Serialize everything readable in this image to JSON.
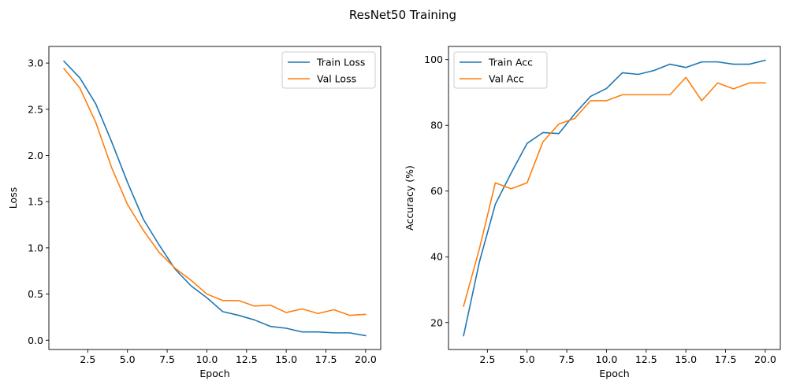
{
  "figure": {
    "suptitle": "ResNet50 Training"
  },
  "chart_data": [
    {
      "type": "line",
      "title": "",
      "xlabel": "Epoch",
      "ylabel": "Loss",
      "xlim": [
        0.05,
        20.95
      ],
      "ylim": [
        -0.1,
        3.18
      ],
      "xticks": [
        2.5,
        5.0,
        7.5,
        10.0,
        12.5,
        15.0,
        17.5,
        20.0
      ],
      "xtick_labels": [
        "2.5",
        "5.0",
        "7.5",
        "10.0",
        "12.5",
        "15.0",
        "17.5",
        "20.0"
      ],
      "yticks": [
        0.0,
        0.5,
        1.0,
        1.5,
        2.0,
        2.5,
        3.0
      ],
      "ytick_labels": [
        "0.0",
        "0.5",
        "1.0",
        "1.5",
        "2.0",
        "2.5",
        "3.0"
      ],
      "grid": false,
      "legend_position": "top-right",
      "x": [
        1,
        2,
        3,
        4,
        5,
        6,
        7,
        8,
        9,
        10,
        11,
        12,
        13,
        14,
        15,
        16,
        17,
        18,
        19,
        20
      ],
      "series": [
        {
          "name": "Train Loss",
          "color": "#1f77b4",
          "values": [
            3.02,
            2.84,
            2.56,
            2.15,
            1.71,
            1.31,
            1.03,
            0.77,
            0.59,
            0.46,
            0.31,
            0.27,
            0.22,
            0.15,
            0.13,
            0.09,
            0.09,
            0.08,
            0.08,
            0.05
          ]
        },
        {
          "name": "Val Loss",
          "color": "#ff7f0e",
          "values": [
            2.94,
            2.73,
            2.36,
            1.87,
            1.47,
            1.19,
            0.95,
            0.78,
            0.65,
            0.5,
            0.43,
            0.43,
            0.37,
            0.38,
            0.3,
            0.34,
            0.29,
            0.33,
            0.27,
            0.28
          ]
        }
      ]
    },
    {
      "type": "line",
      "title": "",
      "xlabel": "Epoch",
      "ylabel": "Accuracy (%)",
      "xlim": [
        0.05,
        20.95
      ],
      "ylim": [
        11.8,
        104.0
      ],
      "xticks": [
        2.5,
        5.0,
        7.5,
        10.0,
        12.5,
        15.0,
        17.5,
        20.0
      ],
      "xtick_labels": [
        "2.5",
        "5.0",
        "7.5",
        "10.0",
        "12.5",
        "15.0",
        "17.5",
        "20.0"
      ],
      "yticks": [
        20,
        40,
        60,
        80,
        100
      ],
      "ytick_labels": [
        "20",
        "40",
        "60",
        "80",
        "100"
      ],
      "grid": false,
      "legend_position": "top-left",
      "x": [
        1,
        2,
        3,
        4,
        5,
        6,
        7,
        8,
        9,
        10,
        11,
        12,
        13,
        14,
        15,
        16,
        17,
        18,
        19,
        20
      ],
      "series": [
        {
          "name": "Train Acc",
          "color": "#1f77b4",
          "values": [
            16.0,
            38.5,
            56.0,
            65.5,
            74.5,
            77.8,
            77.5,
            83.5,
            88.8,
            91.2,
            96.0,
            95.5,
            96.7,
            98.6,
            97.6,
            99.3,
            99.3,
            98.6,
            98.6,
            99.8
          ]
        },
        {
          "name": "Val Acc",
          "color": "#ff7f0e",
          "values": [
            25.0,
            42.5,
            62.5,
            60.7,
            62.5,
            75.0,
            80.4,
            82.1,
            87.5,
            87.5,
            89.3,
            89.3,
            89.3,
            89.3,
            94.6,
            87.5,
            92.9,
            91.1,
            92.9,
            92.9
          ]
        }
      ]
    }
  ]
}
